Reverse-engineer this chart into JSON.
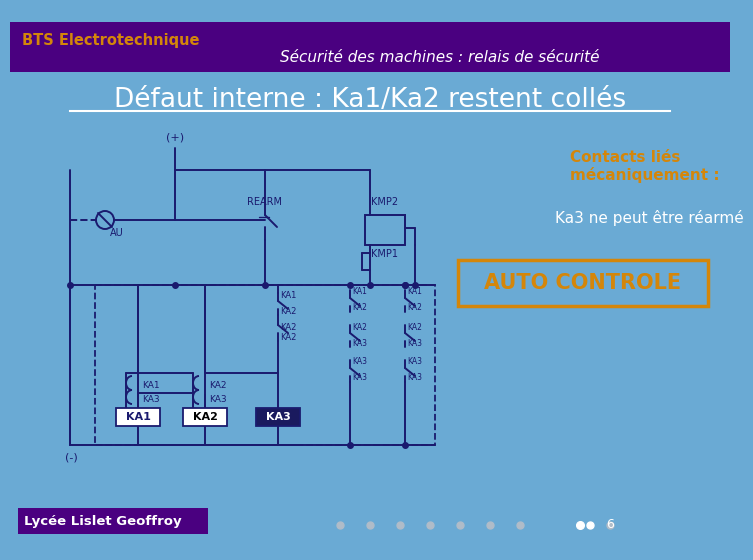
{
  "bg_color": "#6aaad4",
  "header_bg": "#4a0080",
  "title_left": "BTS Electrotechnique",
  "title_right": "Sécurité des machines : relais de sécurité",
  "slide_title": "Défaut interne : Ka1/Ka2 restent collés",
  "contacts_line1": "Contacts liés",
  "contacts_line2": "mécaniquement :",
  "ka3_text": "Ka3 ne peut être réarmé",
  "auto_text": "AUTO CONTROLE",
  "minus_text": "(-)",
  "footer_text": "Lycée Lislet Geoffroy",
  "footer_bg": "#4a0080",
  "page_num": "6",
  "white": "#ffffff",
  "orange": "#d4860a",
  "dark_navy": "#1a1a5e",
  "circuit_color": "#1a1a6e"
}
